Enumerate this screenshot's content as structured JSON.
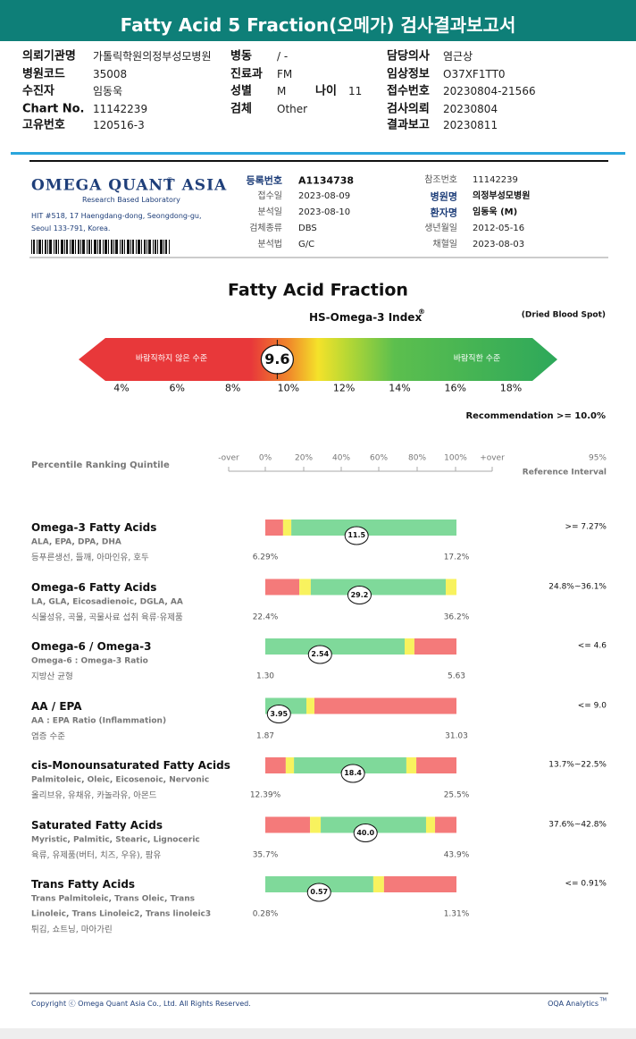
{
  "header": {
    "title": "Fatty Acid 5 Fraction(오메가) 검사결과보고서"
  },
  "info": {
    "col1": [
      {
        "label": "의뢰기관명",
        "value": "가톨릭학원의정부성모병원"
      },
      {
        "label": "병원코드",
        "value": "35008"
      },
      {
        "label": "수진자",
        "value": "임동욱"
      },
      {
        "label": "Chart No.",
        "value": "11142239"
      },
      {
        "label": "고유번호",
        "value": "120516-3"
      }
    ],
    "col2": [
      {
        "label": "병동",
        "value": "/ -"
      },
      {
        "label": "진료과",
        "value": "FM"
      },
      {
        "label": "성별",
        "value": "M"
      },
      {
        "label": "검체",
        "value": "Other"
      }
    ],
    "age": {
      "label": "나이",
      "value": "11"
    },
    "col3": [
      {
        "label": "담당의사",
        "value": "염근상"
      },
      {
        "label": "임상정보",
        "value": "O37XF1TT0"
      },
      {
        "label": "접수번호",
        "value": "20230804-21566"
      },
      {
        "label": "검사의뢰",
        "value": "20230804"
      },
      {
        "label": "결과보고",
        "value": "20230811"
      }
    ]
  },
  "lab": {
    "logo": "OMEGA QUANT ASIA",
    "logo_mark": "®",
    "tagline": "Research Based Laboratory",
    "address": [
      "HIT #518, 17 Haengdang-dong, Seongdong-gu,",
      "Seoul 133-791, Korea."
    ],
    "left": [
      {
        "label": "등록번호",
        "value": "A1134738"
      },
      {
        "label": "접수일",
        "value": "2023-08-09"
      },
      {
        "label": "분석일",
        "value": "2023-08-10"
      },
      {
        "label": "검체종류",
        "value": "DBS"
      },
      {
        "label": "분석법",
        "value": "G/C"
      }
    ],
    "right": [
      {
        "label": "참조번호",
        "value": "11142239"
      },
      {
        "label": "병원명",
        "value": "의정부성모병원"
      },
      {
        "label": "환자명",
        "value": "임동욱 (M)"
      },
      {
        "label": "생년월일",
        "value": "2012-05-16"
      },
      {
        "label": "채혈일",
        "value": "2023-08-03"
      }
    ]
  },
  "index": {
    "title": "Fatty Acid Fraction",
    "name": "HS-Omega-3 Index",
    "name_mark": "®",
    "sample": "(Dried Blood Spot)",
    "low_label": "바람직하지 않은 수준",
    "high_label": "바람직한 수준",
    "value": 9.6,
    "ticks": [
      {
        "value": 4,
        "label": "4%"
      },
      {
        "value": 6,
        "label": "6%"
      },
      {
        "value": 8,
        "label": "8%"
      },
      {
        "value": 10,
        "label": "10%"
      },
      {
        "value": 12,
        "label": "12%"
      },
      {
        "value": 14,
        "label": "14%"
      },
      {
        "value": 16,
        "label": "16%"
      },
      {
        "value": 18,
        "label": "18%"
      }
    ],
    "recommendation": "Recommendation  >= 10.0%"
  },
  "percentile": {
    "title": "Percentile Ranking Quintile",
    "axis": [
      "-over",
      "0%",
      "20%",
      "40%",
      "60%",
      "80%",
      "100%",
      "+over"
    ],
    "ref_title": [
      "95%",
      "Reference Interval"
    ],
    "rows": [
      {
        "name": "Omega-3 Fatty Acids",
        "desc": [
          "ALA, EPA, DPA, DHA"
        ],
        "food": "등푸른생선, 들깨, 아마인유, 호두",
        "min": {
          "value": 6.29,
          "label": "6.29%"
        },
        "max": {
          "value": 17.2,
          "label": "17.2%"
        },
        "value": 11.5,
        "ref": ">= 7.27%"
      },
      {
        "name": "Omega-6 Fatty Acids",
        "desc": [
          "LA, GLA, Eicosadienoic, DGLA, AA"
        ],
        "food": "식물성유, 곡물, 곡물사료 섭취 육류·유제품",
        "min": {
          "value": 22.4,
          "label": "22.4%"
        },
        "max": {
          "value": 36.2,
          "label": "36.2%"
        },
        "value": 29.2,
        "ref": "24.8%~36.1%"
      },
      {
        "name": "Omega-6 / Omega-3",
        "desc": [
          "Omega-6 : Omega-3 Ratio"
        ],
        "food": "지방산 균형",
        "min": {
          "value": 1.3,
          "label": "1.30"
        },
        "max": 5.63,
        "value": 2.54,
        "ref": "<= 4.6"
      },
      {
        "name": "AA / EPA",
        "desc": [
          "AA : EPA Ratio (Inflammation)"
        ],
        "food": "염증 수준",
        "min": 1.87,
        "max": 31.03,
        "value": 3.95,
        "ref": "<= 9.0"
      },
      {
        "name": "cis-Monounsaturated Fatty Acids",
        "desc": [
          "Palmitoleic, Oleic, Eicosenoic, Nervonic"
        ],
        "food": "올리브유, 유채유, 카놀라유, 아몬드",
        "min": {
          "value": 12.39,
          "label": "12.39%"
        },
        "max": {
          "value": 25.5,
          "label": "25.5%"
        },
        "value": 18.4,
        "ref": "13.7%~22.5%"
      },
      {
        "name": "Saturated Fatty Acids",
        "desc": [
          "Myristic, Palmitic, Stearic, Lignoceric"
        ],
        "food": "육류, 유제품(버터, 치즈, 우유), 팜유",
        "min": {
          "value": 35.7,
          "label": "35.7%"
        },
        "max": {
          "value": 43.9,
          "label": "43.9%"
        },
        "value": {
          "value": 40,
          "label": "40.0"
        },
        "ref": "37.6%~42.8%"
      },
      {
        "name": "Trans Fatty Acids",
        "desc": [
          "Trans Palmitoleic, Trans Oleic, Trans",
          "Linoleic, Trans Linoleic2, Trans linoleic3"
        ],
        "food": "튀김, 쇼트닝, 마아가린",
        "min": {
          "value": 0.28,
          "label": "0.28%"
        },
        "max": {
          "value": 1.31,
          "label": "1.31%"
        },
        "value": 0.57,
        "ref": "<= 0.91%"
      }
    ]
  },
  "footer": {
    "copyright": "Copyright ⓒ Omega Quant Asia Co., Ltd.  All Rights Reserved.",
    "brand": "OQA Analytics",
    "brand_mark": "TM"
  }
}
